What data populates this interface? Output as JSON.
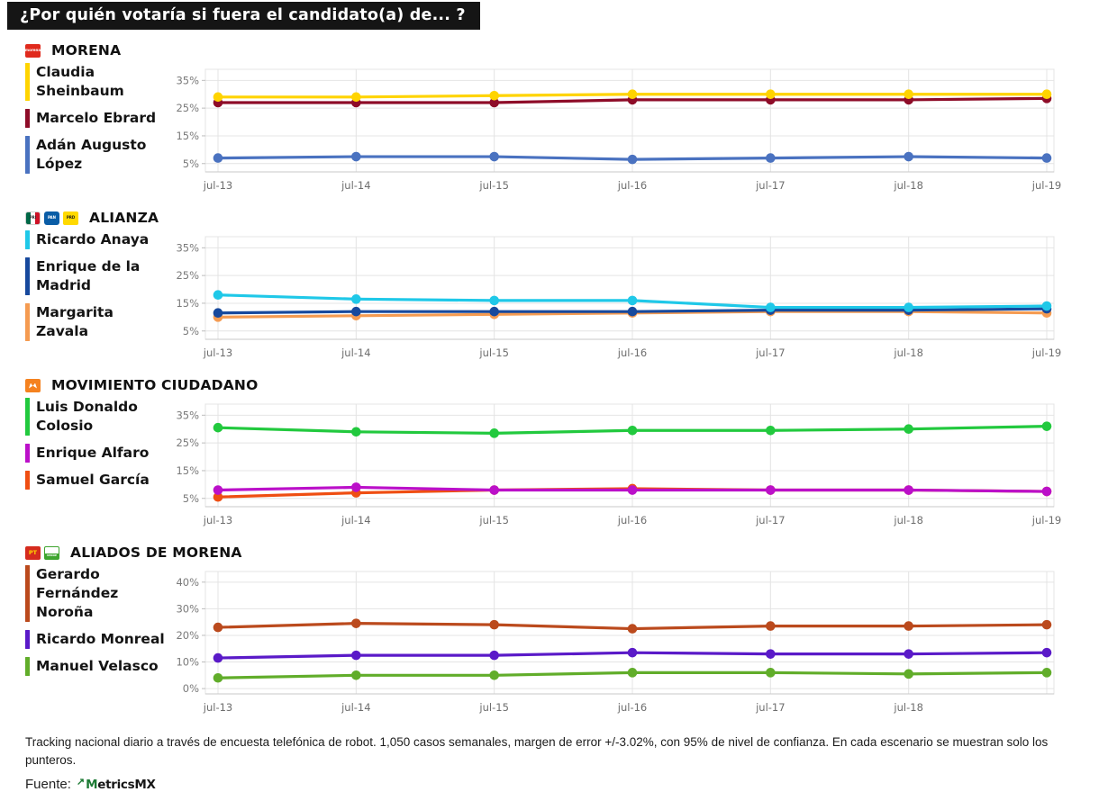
{
  "title": "¿Por quién votaría si fuera el candidato(a) de... ?",
  "footer": {
    "note": "Tracking nacional diario a través de encuesta telefónica de robot. 1,050 casos semanales, margen de error +/-3.02%, con 95% de nivel de confianza. En cada escenario se muestran solo los punteros.",
    "source_label": "Fuente:",
    "source_name": "MetricsMX"
  },
  "chart_data": [
    {
      "type": "line",
      "title": "MORENA",
      "logos": [
        {
          "id": "morena",
          "text": "morena"
        }
      ],
      "x_labels": [
        "jul-13",
        "jul-14",
        "jul-15",
        "jul-16",
        "jul-17",
        "jul-18",
        "jul-19"
      ],
      "yticks": [
        35,
        25,
        15,
        5
      ],
      "ylim": [
        2,
        39
      ],
      "grid": true,
      "legend_position": "left",
      "series": [
        {
          "name": "Claudia Sheinbaum",
          "color": "#FFD400",
          "values": [
            29,
            29,
            29.5,
            30,
            30,
            30,
            30
          ]
        },
        {
          "name": "Marcelo Ebrard",
          "color": "#8E0C28",
          "values": [
            27,
            27,
            27,
            28,
            28,
            28,
            28.5
          ]
        },
        {
          "name": "Adán Augusto López",
          "color": "#4A72C0",
          "values": [
            7,
            7.5,
            7.5,
            6.5,
            7,
            7.5,
            7
          ]
        }
      ]
    },
    {
      "type": "line",
      "title": "ALIANZA",
      "logos": [
        {
          "id": "pri",
          "text": "PRI"
        },
        {
          "id": "pan",
          "text": "PAN"
        },
        {
          "id": "prd",
          "text": "PRD"
        }
      ],
      "x_labels": [
        "jul-13",
        "jul-14",
        "jul-15",
        "jul-16",
        "jul-17",
        "jul-18",
        "jul-19"
      ],
      "yticks": [
        35,
        25,
        15,
        5
      ],
      "ylim": [
        2,
        39
      ],
      "grid": true,
      "legend_position": "left",
      "series": [
        {
          "name": "Ricardo Anaya",
          "color": "#1FC8E8",
          "values": [
            18,
            16.5,
            16,
            16,
            13.5,
            13.5,
            14
          ]
        },
        {
          "name": "Enrique de la Madrid",
          "color": "#17499D",
          "values": [
            11.5,
            12,
            12,
            12,
            12.5,
            12.5,
            13
          ]
        },
        {
          "name": "Margarita Zavala",
          "color": "#F59B51",
          "values": [
            10,
            10.5,
            11,
            11.5,
            12,
            12,
            11.5
          ]
        }
      ]
    },
    {
      "type": "line",
      "title": "MOVIMIENTO CIUDADANO",
      "logos": [
        {
          "id": "mc",
          "text": ""
        }
      ],
      "x_labels": [
        "jul-13",
        "jul-14",
        "jul-15",
        "jul-16",
        "jul-17",
        "jul-18",
        "jul-19"
      ],
      "yticks": [
        35,
        25,
        15,
        5
      ],
      "ylim": [
        2,
        39
      ],
      "grid": true,
      "legend_position": "left",
      "series": [
        {
          "name": "Luis Donaldo Colosio",
          "color": "#22C93E",
          "values": [
            30.5,
            29,
            28.5,
            29.5,
            29.5,
            30,
            31
          ]
        },
        {
          "name": "Enrique Alfaro",
          "color": "#BB10C9",
          "values": [
            8,
            9,
            8,
            8,
            8,
            8,
            7.5
          ]
        },
        {
          "name": "Samuel García",
          "color": "#EF4E12",
          "values": [
            5.5,
            7,
            8,
            8.5,
            8,
            8,
            7.5
          ]
        }
      ]
    },
    {
      "type": "line",
      "title": "ALIADOS DE MORENA",
      "logos": [
        {
          "id": "pt",
          "text": "PT"
        },
        {
          "id": "verde",
          "text": "VERDE"
        }
      ],
      "x_labels": [
        "jul-13",
        "jul-14",
        "jul-15",
        "jul-16",
        "jul-17",
        "jul-18",
        ""
      ],
      "yticks": [
        40,
        30,
        20,
        10,
        0
      ],
      "ylim": [
        -2,
        44
      ],
      "grid": true,
      "legend_position": "left",
      "series": [
        {
          "name": "Gerardo Fernández Noroña",
          "color": "#BB4A1D",
          "values": [
            23,
            24.5,
            24,
            22.5,
            23.5,
            23.5,
            24
          ]
        },
        {
          "name": "Ricardo Monreal",
          "color": "#5A1AC8",
          "values": [
            11.5,
            12.5,
            12.5,
            13.5,
            13,
            13,
            13.5
          ]
        },
        {
          "name": "Manuel Velasco",
          "color": "#61AD2A",
          "values": [
            4,
            5,
            5,
            6,
            6,
            5.5,
            6
          ]
        }
      ]
    }
  ]
}
